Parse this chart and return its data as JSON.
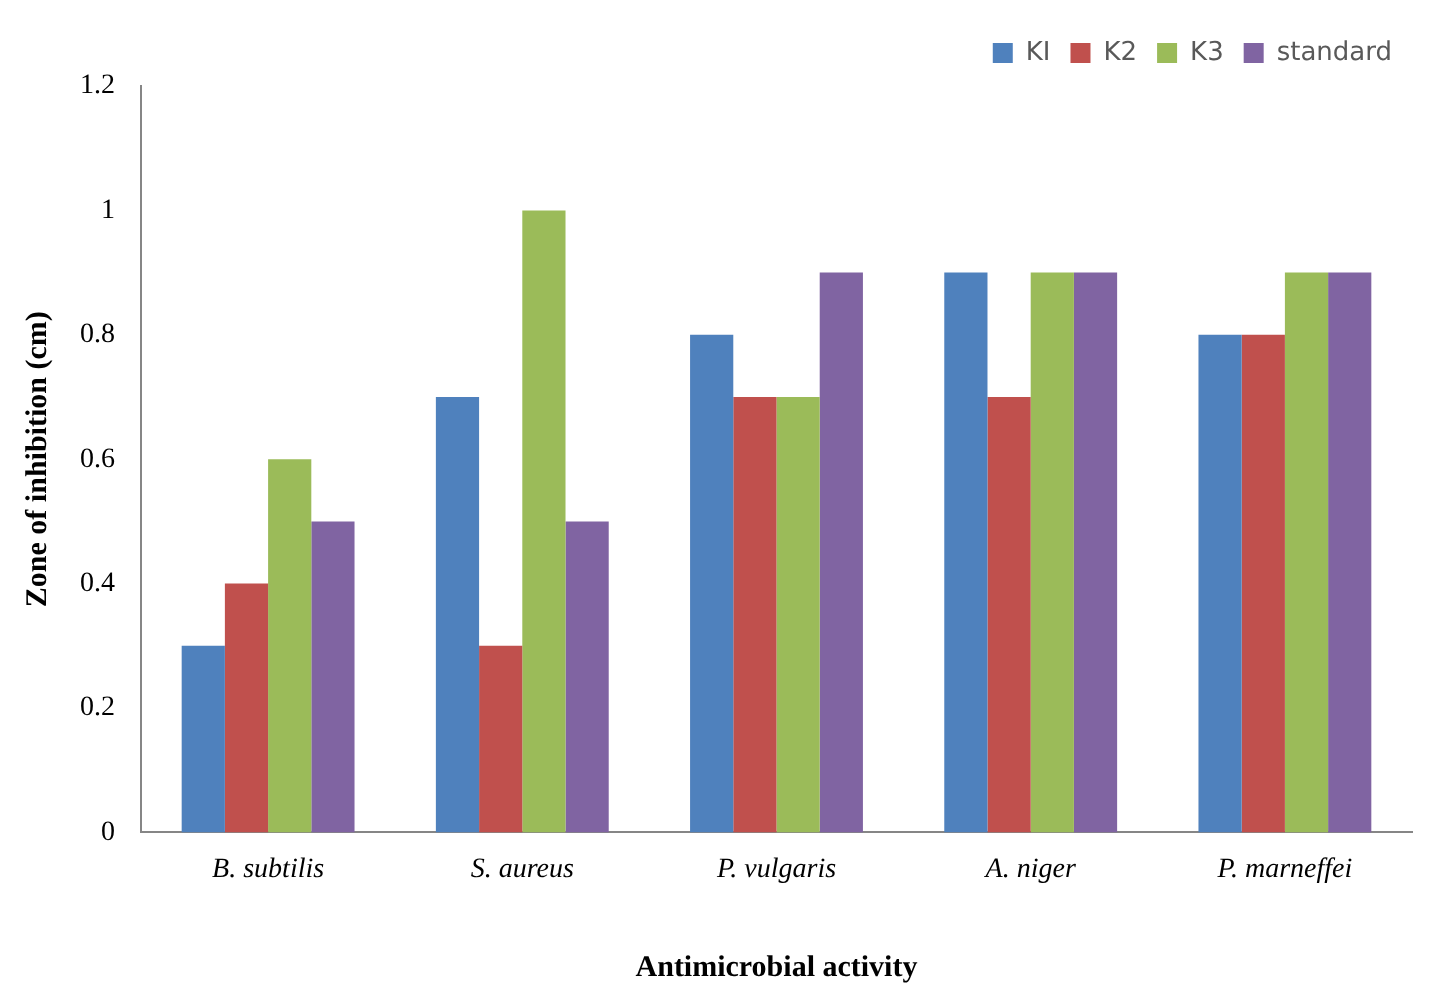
{
  "chart_data": {
    "type": "bar",
    "xlabel": "Antimicrobial activity",
    "ylabel": "Zone of inhibition (cm)",
    "categories": [
      "B. subtilis",
      "S. aureus",
      "P. vulgaris",
      "A. niger",
      "P. marneffei"
    ],
    "series": [
      {
        "name": "KI",
        "color": "#4f81bd",
        "values": [
          0.3,
          0.7,
          0.8,
          0.9,
          0.8
        ]
      },
      {
        "name": "K2",
        "color": "#c0504d",
        "values": [
          0.4,
          0.3,
          0.7,
          0.7,
          0.8
        ]
      },
      {
        "name": "K3",
        "color": "#9bbb59",
        "values": [
          0.6,
          1.0,
          0.7,
          0.9,
          0.9
        ]
      },
      {
        "name": "standard",
        "color": "#8064a2",
        "values": [
          0.5,
          0.5,
          0.9,
          0.9,
          0.9
        ]
      }
    ],
    "ylim": [
      0,
      1.2
    ],
    "yticks": [
      0,
      0.2,
      0.4,
      0.6,
      0.8,
      1,
      1.2
    ],
    "grid": false,
    "legend": "top right"
  }
}
